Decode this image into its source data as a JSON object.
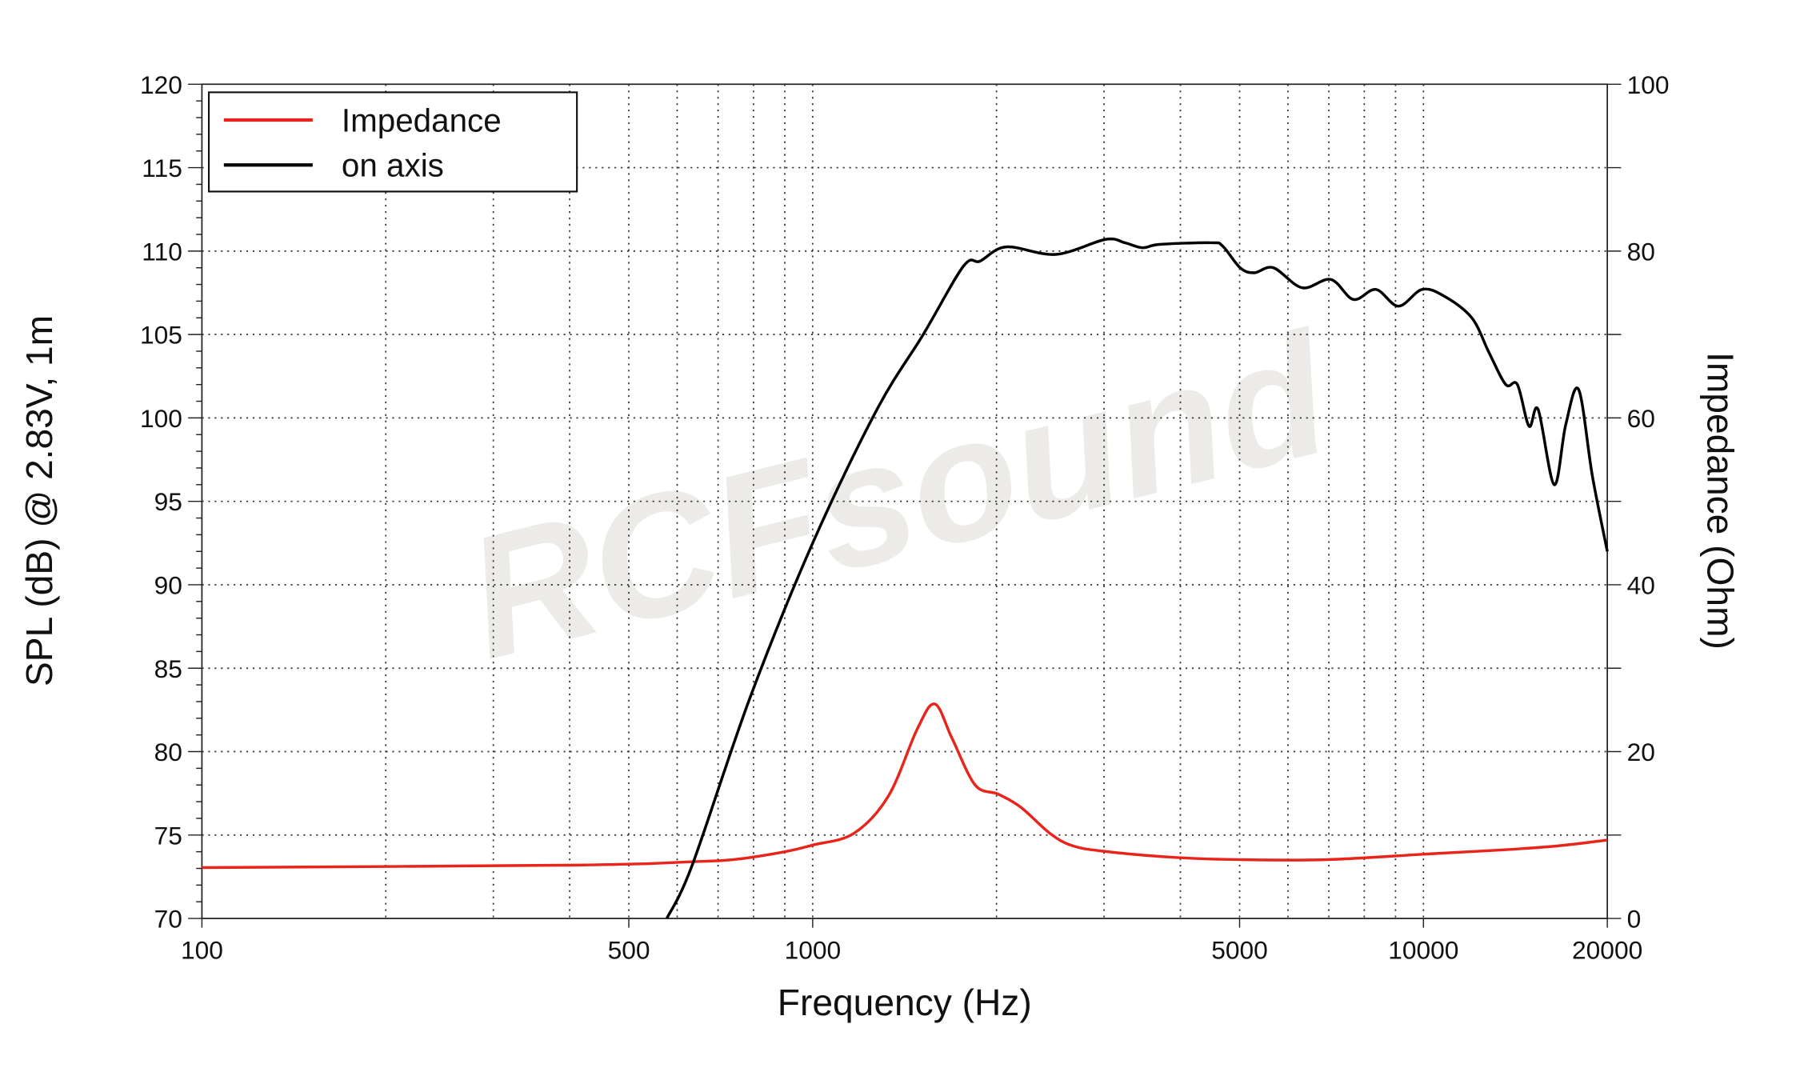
{
  "chart_data": {
    "type": "line",
    "xlabel": "Frequency (Hz)",
    "ylabel": "SPL (dB) @ 2.83V, 1m",
    "y2label": "Impedance (Ohm)",
    "xscale": "log",
    "xlim": [
      100,
      20000
    ],
    "ylim": [
      70,
      120
    ],
    "y2lim": [
      0,
      100
    ],
    "grid": true,
    "legend_position": "top-left",
    "x_ticks": [
      100,
      500,
      1000,
      5000,
      10000,
      20000
    ],
    "x_tick_labels": [
      "100",
      "500",
      "1000",
      "5000",
      "10000",
      "20000"
    ],
    "x_grid": [
      200,
      300,
      400,
      500,
      600,
      700,
      800,
      900,
      1000,
      2000,
      3000,
      4000,
      5000,
      6000,
      7000,
      8000,
      9000,
      10000
    ],
    "y_ticks": [
      70,
      75,
      80,
      85,
      90,
      95,
      100,
      105,
      110,
      115,
      120
    ],
    "y_tick_labels": [
      "70",
      "75",
      "80",
      "85",
      "90",
      "95",
      "100",
      "105",
      "110",
      "115",
      "120"
    ],
    "y2_ticks": [
      0,
      20,
      40,
      60,
      80,
      100
    ],
    "y2_tick_labels": [
      "0",
      "20",
      "40",
      "60",
      "80",
      "100"
    ],
    "watermark": "RCFsound",
    "series": [
      {
        "name": "Impedance",
        "axis": "right",
        "color": "#e8241b",
        "x": [
          100,
          411,
          635,
          750,
          900,
          1000,
          1168,
          1331,
          1483,
          1585,
          1691,
          1845,
          2013,
          2194,
          2446,
          2668,
          3041,
          3947,
          5010,
          6950,
          10000,
          13340,
          16600,
          20000
        ],
        "y": [
          6.1,
          6.4,
          6.8,
          7.1,
          8.0,
          8.8,
          10.2,
          14.7,
          22.7,
          25.7,
          21.6,
          16.0,
          14.9,
          13.3,
          10.2,
          8.7,
          8.0,
          7.3,
          7.05,
          7.05,
          7.7,
          8.2,
          8.7,
          9.4
        ]
      },
      {
        "name": "on axis",
        "axis": "left",
        "color": "#000000",
        "x": [
          577,
          635,
          789,
          1000,
          1274,
          1517,
          1766,
          1880,
          2074,
          2500,
          3015,
          3244,
          3468,
          3698,
          4490,
          4690,
          5010,
          5285,
          5680,
          6330,
          7050,
          7680,
          8360,
          9100,
          9950,
          10810,
          12000,
          12810,
          13640,
          14250,
          14890,
          15410,
          16370,
          17100,
          17950,
          18910,
          20000
        ],
        "y": [
          70,
          73.2,
          83.2,
          92.5,
          100.5,
          105,
          109.1,
          109.4,
          110.25,
          109.8,
          110.7,
          110.5,
          110.2,
          110.4,
          110.5,
          110.3,
          109,
          108.7,
          109,
          107.8,
          108.3,
          107.1,
          107.7,
          106.7,
          107.7,
          107.3,
          106,
          103.9,
          102,
          102,
          99.5,
          100.5,
          96,
          99.6,
          101.7,
          96.5,
          92
        ]
      }
    ]
  }
}
